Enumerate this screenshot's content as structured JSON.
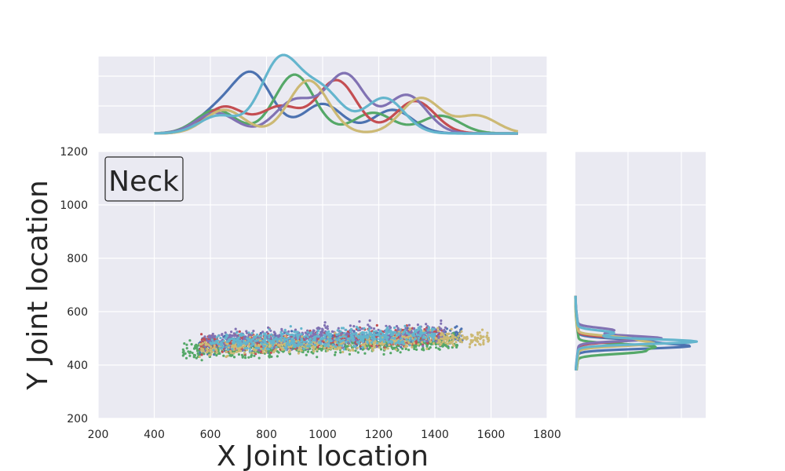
{
  "chart_data": {
    "type": "scatter",
    "xlabel": "X Joint location",
    "ylabel": "Y Joint location",
    "annotation": "Neck",
    "xlim": [
      200,
      1800
    ],
    "ylim": [
      200,
      1200
    ],
    "xticks": [
      200,
      400,
      600,
      800,
      1000,
      1200,
      1400,
      1600,
      1800
    ],
    "yticks": [
      200,
      400,
      600,
      800,
      1000,
      1200
    ],
    "grid": true,
    "marginals": {
      "top": "kde of x",
      "right": "kde of y"
    },
    "series": [
      {
        "color": "#4c72b0",
        "x_range": [
          560,
          1500
        ],
        "y_center": 490,
        "y_spread": 28,
        "x_kde_peaks": [
          [
            620,
            0.35
          ],
          [
            750,
            0.98
          ],
          [
            1000,
            0.5
          ],
          [
            1250,
            0.4
          ]
        ],
        "y_kde_peaks": [
          [
            470,
            0.9
          ],
          [
            490,
            0.5
          ]
        ]
      },
      {
        "color": "#55a868",
        "x_range": [
          500,
          1480
        ],
        "y_center": 470,
        "y_spread": 30,
        "x_kde_peaks": [
          [
            620,
            0.4
          ],
          [
            900,
            1.0
          ],
          [
            1180,
            0.35
          ],
          [
            1420,
            0.3
          ]
        ],
        "y_kde_peaks": [
          [
            450,
            0.5
          ],
          [
            470,
            0.6
          ]
        ]
      },
      {
        "color": "#c44e52",
        "x_range": [
          560,
          1430
        ],
        "y_center": 495,
        "y_spread": 30,
        "x_kde_peaks": [
          [
            650,
            0.45
          ],
          [
            850,
            0.45
          ],
          [
            1050,
            0.9
          ],
          [
            1330,
            0.55
          ]
        ],
        "y_kde_peaks": [
          [
            495,
            0.45
          ]
        ]
      },
      {
        "color": "#8172b3",
        "x_range": [
          580,
          1440
        ],
        "y_center": 505,
        "y_spread": 35,
        "x_kde_peaks": [
          [
            620,
            0.35
          ],
          [
            900,
            0.55
          ],
          [
            1080,
            1.0
          ],
          [
            1300,
            0.65
          ]
        ],
        "y_kde_peaks": [
          [
            500,
            0.7
          ],
          [
            530,
            0.3
          ]
        ]
      },
      {
        "color": "#ccb974",
        "x_range": [
          560,
          1600
        ],
        "y_center": 480,
        "y_spread": 28,
        "x_kde_peaks": [
          [
            650,
            0.4
          ],
          [
            950,
            0.9
          ],
          [
            1350,
            0.6
          ],
          [
            1550,
            0.3
          ]
        ],
        "y_kde_peaks": [
          [
            480,
            0.6
          ],
          [
            500,
            0.4
          ]
        ]
      },
      {
        "color": "#64b5cd",
        "x_range": [
          600,
          1400
        ],
        "y_center": 500,
        "y_spread": 30,
        "x_kde_peaks": [
          [
            630,
            0.3
          ],
          [
            850,
            1.25
          ],
          [
            1000,
            0.7
          ],
          [
            1220,
            0.6
          ]
        ],
        "y_kde_peaks": [
          [
            488,
            1.0
          ],
          [
            520,
            0.3
          ]
        ]
      }
    ]
  }
}
